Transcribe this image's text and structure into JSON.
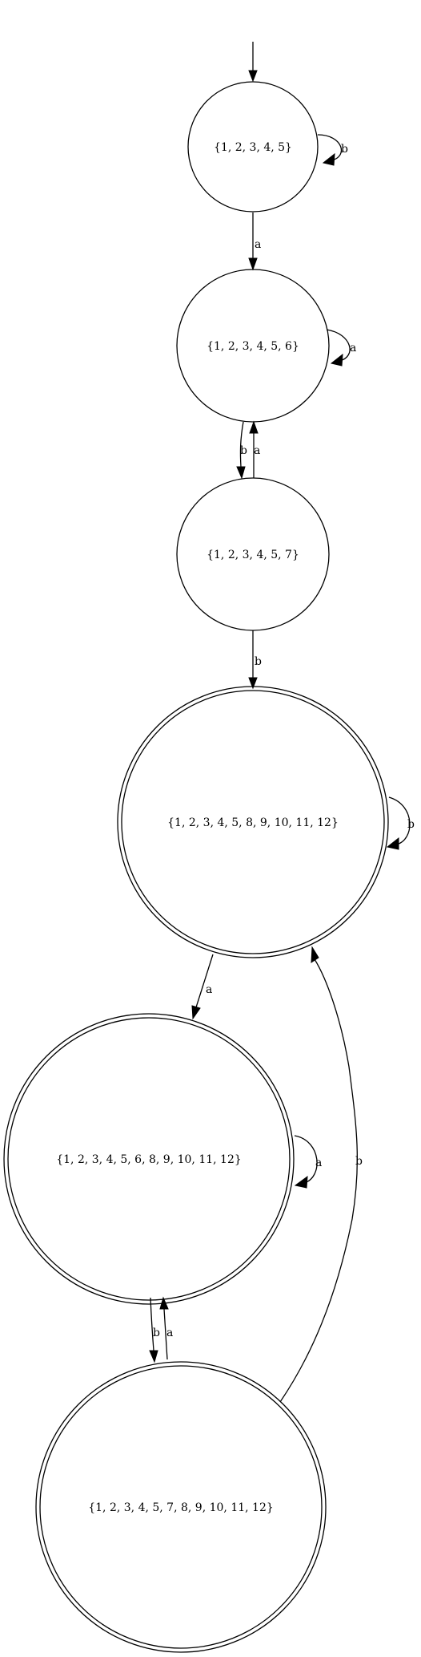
{
  "diagram": {
    "type": "state-machine",
    "states": {
      "s1": {
        "label": "{1, 2, 3, 4, 5}",
        "accepting": false,
        "initial": true
      },
      "s2": {
        "label": "{1, 2, 3, 4, 5, 6}",
        "accepting": false,
        "initial": false
      },
      "s3": {
        "label": "{1, 2, 3, 4, 5, 7}",
        "accepting": false,
        "initial": false
      },
      "s4": {
        "label": "{1, 2, 3, 4, 5, 8, 9, 10, 11, 12}",
        "accepting": true,
        "initial": false
      },
      "s5": {
        "label": "{1, 2, 3, 4, 5, 6, 8, 9, 10, 11, 12}",
        "accepting": true,
        "initial": false
      },
      "s6": {
        "label": "{1, 2, 3, 4, 5, 7, 8, 9, 10, 11, 12}",
        "accepting": true,
        "initial": false
      }
    },
    "transitions": {
      "t_s1_s1_b": {
        "from": "s1",
        "to": "s1",
        "symbol": "b"
      },
      "t_s1_s2_a": {
        "from": "s1",
        "to": "s2",
        "symbol": "a"
      },
      "t_s2_s2_a": {
        "from": "s2",
        "to": "s2",
        "symbol": "a"
      },
      "t_s2_s3_b": {
        "from": "s2",
        "to": "s3",
        "symbol": "b"
      },
      "t_s3_s2_a": {
        "from": "s3",
        "to": "s2",
        "symbol": "a"
      },
      "t_s3_s4_b": {
        "from": "s3",
        "to": "s4",
        "symbol": "b"
      },
      "t_s4_s4_b": {
        "from": "s4",
        "to": "s4",
        "symbol": "b"
      },
      "t_s4_s5_a": {
        "from": "s4",
        "to": "s5",
        "symbol": "a"
      },
      "t_s5_s5_a": {
        "from": "s5",
        "to": "s5",
        "symbol": "a"
      },
      "t_s5_s6_b": {
        "from": "s5",
        "to": "s6",
        "symbol": "b"
      },
      "t_s6_s5_a": {
        "from": "s6",
        "to": "s5",
        "symbol": "a"
      },
      "t_s6_s4_b": {
        "from": "s6",
        "to": "s4",
        "symbol": "b"
      }
    }
  }
}
